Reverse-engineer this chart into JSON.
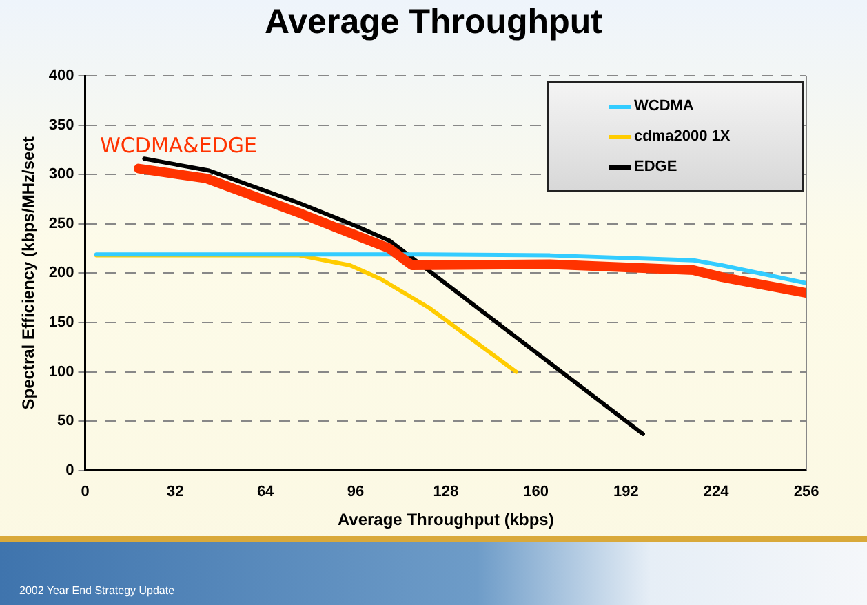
{
  "chart_data": {
    "type": "line",
    "title": "Average Throughput",
    "xlabel": "Average Throughput (kbps)",
    "ylabel": "Spectral Efficiency (kbps/MHz/sect",
    "xlim": [
      0,
      256
    ],
    "xticks": [
      0,
      32,
      64,
      96,
      128,
      160,
      192,
      224,
      256
    ],
    "ylim": [
      0,
      400
    ],
    "yticks": [
      0,
      50,
      100,
      150,
      200,
      250,
      300,
      350,
      400
    ],
    "grid": "y",
    "legend": "top right",
    "marker": "none",
    "line_style": "solid",
    "series": [
      {
        "name": "WCDMA",
        "color": "#33ccff",
        "x": [
          4,
          76,
          120,
          165,
          216,
          226,
          256
        ],
        "values": [
          219,
          219,
          219,
          218,
          213,
          208,
          190
        ]
      },
      {
        "name": "cdma2000 1X",
        "color": "#ffcc00",
        "x": [
          4,
          76,
          94,
          105,
          122,
          153
        ],
        "values": [
          218,
          218,
          208,
          194,
          165,
          100
        ]
      },
      {
        "name": "EDGE",
        "color": "#000000",
        "x": [
          21,
          44,
          76,
          96,
          108,
          198
        ],
        "values": [
          316,
          304,
          271,
          248,
          233,
          37
        ]
      },
      {
        "color": "#ff3300",
        "x": [
          19,
          43,
          76,
          108,
          116,
          165,
          216,
          226,
          256
        ],
        "values": [
          306,
          296,
          261,
          225,
          208,
          209,
          203,
          196,
          180
        ]
      }
    ],
    "annotations": [
      "WCDMA&EDGE",
      "2002 Year End Strategy Update"
    ]
  }
}
